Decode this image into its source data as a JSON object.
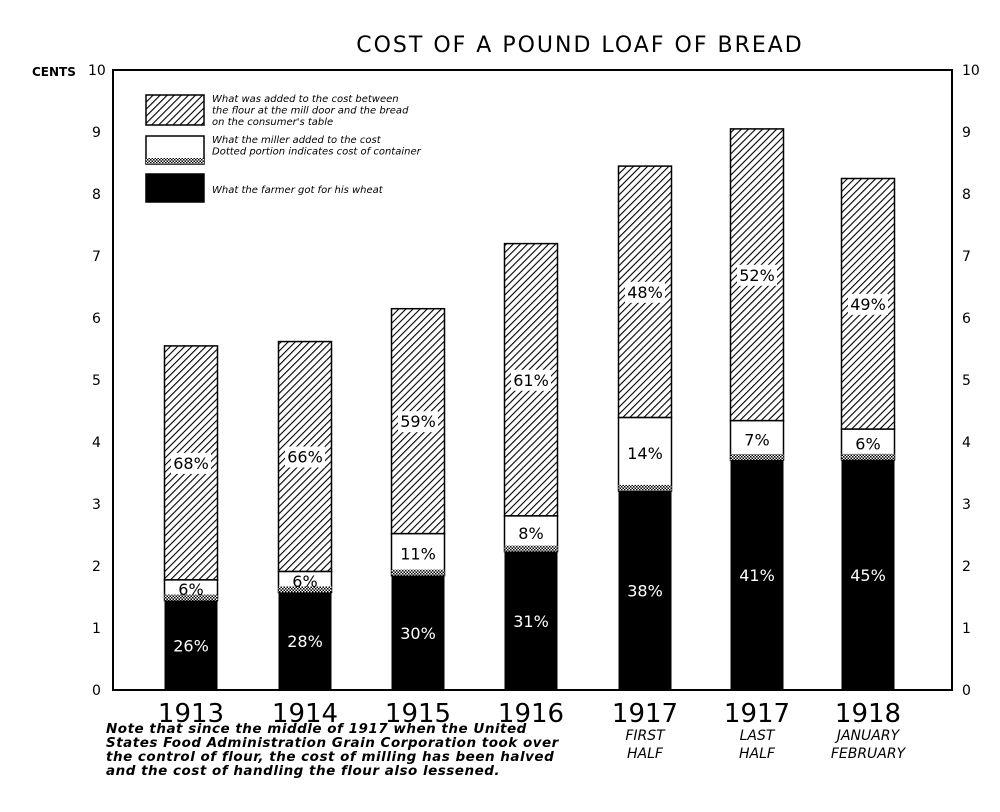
{
  "chart_data": {
    "type": "bar",
    "stacked": true,
    "title": "COST OF A POUND LOAF OF BREAD",
    "ylabel": "CENTS",
    "ylim": [
      0,
      10
    ],
    "yticks": [
      "0",
      "1",
      "2",
      "3",
      "4",
      "5",
      "6",
      "7",
      "8",
      "9",
      "10"
    ],
    "grid": false,
    "legend_placement": "top-left",
    "categories": [
      {
        "lines": [
          "1913"
        ]
      },
      {
        "lines": [
          "1914"
        ]
      },
      {
        "lines": [
          "1915"
        ]
      },
      {
        "lines": [
          "1916"
        ]
      },
      {
        "lines": [
          "1917",
          "FIRST",
          "HALF"
        ]
      },
      {
        "lines": [
          "1917",
          "LAST",
          "HALF"
        ]
      },
      {
        "lines": [
          "1918",
          "JANUARY",
          "FEBRUARY"
        ]
      }
    ],
    "totals_cents": [
      5.55,
      5.62,
      6.15,
      7.2,
      8.45,
      9.05,
      8.25
    ],
    "series": [
      {
        "name": "What the farmer got for his wheat",
        "pattern": "solid-black",
        "percent_labels": [
          "26%",
          "28%",
          "30%",
          "31%",
          "38%",
          "41%",
          "45%"
        ],
        "percent": [
          26,
          28,
          30,
          31,
          38,
          41,
          45
        ]
      },
      {
        "name": "What the miller added to the cost Dotted portion indicates cost of container",
        "legend_lines": [
          "What the miller added to the cost",
          "Dotted portion indicates cost of container"
        ],
        "pattern": "white-with-dotted-base",
        "percent_labels": [
          "6%",
          "6%",
          "11%",
          "8%",
          "14%",
          "7%",
          "6%"
        ],
        "percent": [
          6,
          6,
          11,
          8,
          14,
          7,
          6
        ]
      },
      {
        "name": "What was added to the cost between the flour at the mill door and the bread on the consumer's table",
        "legend_lines": [
          "What was added to the cost between",
          "the flour at the mill door and the bread",
          "on the consumer's table"
        ],
        "pattern": "diagonal-hatch",
        "percent_labels": [
          "68%",
          "66%",
          "59%",
          "61%",
          "48%",
          "52%",
          "49%"
        ],
        "percent": [
          68,
          66,
          59,
          61,
          48,
          52,
          49
        ]
      }
    ]
  },
  "note_lines": [
    "Note that since the middle of 1917 when the United",
    "States Food Administration Grain Corporation took over",
    "the control of flour, the cost of milling has been halved",
    "and the cost of handling the flour also lessened."
  ],
  "colors": {
    "ink": "#000000",
    "paper": "#ffffff"
  }
}
